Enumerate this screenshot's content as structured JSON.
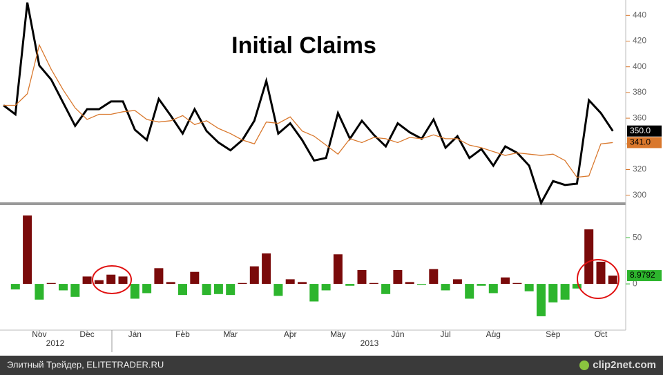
{
  "chart_data": {
    "type": "line",
    "title": "Initial Claims",
    "categories": [
      null,
      null,
      null,
      "Nov",
      null,
      null,
      null,
      "Dec",
      null,
      null,
      null,
      "Jan",
      null,
      null,
      null,
      "Feb",
      null,
      null,
      null,
      "Mar",
      null,
      null,
      null,
      null,
      "Apr",
      null,
      null,
      null,
      "May",
      null,
      null,
      null,
      null,
      "Jun",
      null,
      null,
      null,
      "Jul",
      null,
      null,
      null,
      "Aug",
      null,
      null,
      null,
      null,
      "Sep",
      null,
      null,
      null,
      "Oct",
      null
    ],
    "years": [
      "2012",
      "2013"
    ],
    "ylim": [
      295,
      452
    ],
    "yticks": [
      300,
      320,
      340,
      360,
      380,
      400,
      420,
      440
    ],
    "y2lim": [
      -50,
      83
    ],
    "y2ticks": [
      0,
      50
    ],
    "series": [
      {
        "color": "#000000",
        "last_label": "350.0",
        "values": [
          370,
          363,
          450,
          401,
          390,
          372,
          354,
          367,
          367,
          373,
          373,
          351,
          343,
          375,
          362,
          348,
          367,
          350,
          341,
          335,
          343,
          358,
          389,
          348,
          356,
          343,
          327,
          329,
          364,
          344,
          358,
          347,
          338,
          356,
          349,
          344,
          359,
          337,
          346,
          329,
          336,
          323,
          338,
          333,
          323,
          294,
          311,
          308,
          309,
          374,
          364,
          350
        ]
      },
      {
        "color": "#d9782d",
        "last_label": "341.0",
        "values": [
          370,
          370,
          379,
          417,
          398,
          382,
          368,
          359,
          363,
          363,
          365,
          366,
          359,
          357,
          358,
          362,
          355,
          358,
          352,
          348,
          343,
          340,
          357,
          356,
          361,
          350,
          346,
          339,
          332,
          344,
          341,
          345,
          344,
          341,
          345,
          344,
          347,
          344,
          344,
          339,
          337,
          334,
          331,
          333,
          332,
          331,
          332,
          327,
          314,
          315,
          340,
          341
        ]
      },
      {
        "type": "bar",
        "axis": "y2",
        "color": "#7a0a0a",
        "negative_color": "#2db52d",
        "last_label": "8.9792",
        "values": [
          null,
          -6,
          74,
          -17,
          1,
          -7,
          -14,
          8,
          4,
          10,
          8,
          -16,
          -10,
          17,
          2,
          -12,
          13,
          -12,
          -11,
          -12,
          1,
          19,
          33,
          -13,
          5,
          2,
          -19,
          -7,
          32,
          -2,
          15,
          1,
          -11,
          15,
          2,
          -1,
          16,
          -7,
          5,
          -16,
          -2,
          -10,
          7,
          1,
          -8,
          -35,
          -20,
          -17,
          -5,
          59,
          24,
          8.9792
        ]
      }
    ]
  },
  "footer": {
    "source": "Элитный Трейдер, ELITETRADER.RU",
    "logo": "clip2net.com"
  }
}
